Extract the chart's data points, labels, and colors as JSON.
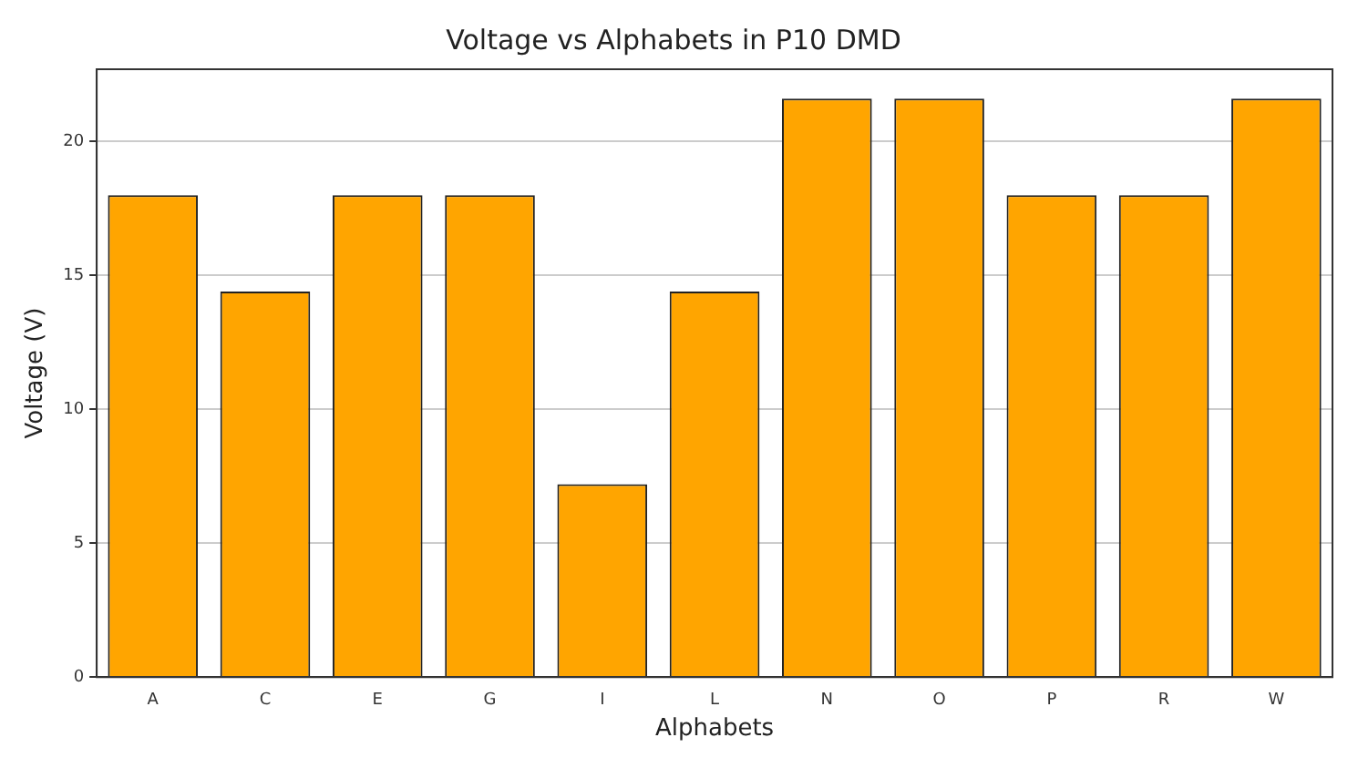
{
  "chart_data": {
    "type": "bar",
    "title": "Voltage vs Alphabets in P10 DMD",
    "xlabel": "Alphabets",
    "ylabel": "Voltage (V)",
    "categories": [
      "A",
      "C",
      "E",
      "G",
      "I",
      "L",
      "N",
      "O",
      "P",
      "R",
      "W"
    ],
    "values": [
      18,
      14.4,
      18,
      18,
      7.2,
      14.4,
      21.6,
      21.6,
      18,
      18,
      21.6
    ],
    "color": "#ffa500",
    "ylim": [
      0,
      22.7
    ],
    "yticks": [
      0,
      5,
      10,
      15,
      20
    ],
    "grid": "y",
    "legend": false
  }
}
